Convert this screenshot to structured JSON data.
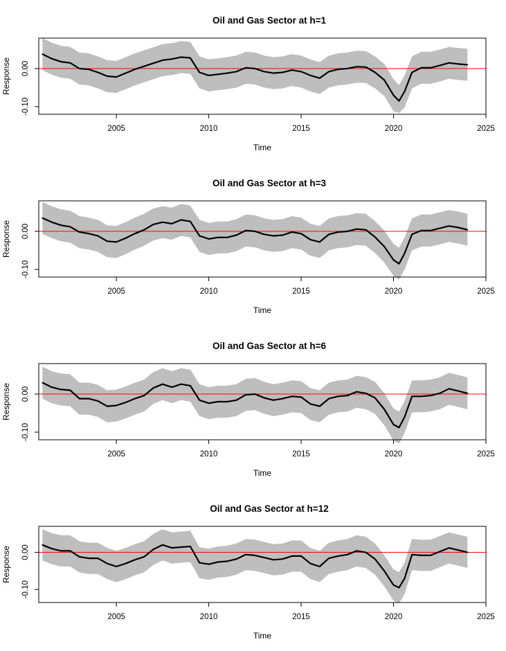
{
  "chart_data": [
    {
      "type": "line",
      "title": "Oil and Gas Sector  at h=1",
      "xlabel": "Time",
      "ylabel": "Response",
      "xlim": [
        2000.8,
        2025
      ],
      "ylim": [
        -0.12,
        0.08
      ],
      "x_ticks": [
        "2005",
        "2010",
        "2015",
        "2020",
        "2025"
      ],
      "y_ticks": [
        "-0.10",
        "0.00"
      ],
      "reference_line": {
        "y": 0,
        "color": "#ff0000"
      },
      "band_color": "#bebebe",
      "line_color": "#000000",
      "x": [
        2001.0,
        2001.5,
        2002.0,
        2002.5,
        2003.0,
        2003.5,
        2004.0,
        2004.5,
        2005.0,
        2005.5,
        2006.0,
        2006.5,
        2007.0,
        2007.5,
        2008.0,
        2008.5,
        2009.0,
        2009.5,
        2010.0,
        2010.5,
        2011.0,
        2011.5,
        2012.0,
        2012.5,
        2013.0,
        2013.5,
        2014.0,
        2014.5,
        2015.0,
        2015.5,
        2016.0,
        2016.5,
        2017.0,
        2017.5,
        2018.0,
        2018.5,
        2019.0,
        2019.5,
        2020.0,
        2020.3,
        2020.6,
        2021.0,
        2021.5,
        2022.0,
        2022.5,
        2023.0,
        2023.5,
        2024.0
      ],
      "series": [
        {
          "values": [
            0.038,
            0.026,
            0.018,
            0.015,
            0.0,
            -0.002,
            -0.01,
            -0.02,
            -0.022,
            -0.012,
            -0.002,
            0.006,
            0.014,
            0.022,
            0.025,
            0.03,
            0.028,
            -0.01,
            -0.018,
            -0.015,
            -0.012,
            -0.008,
            0.002,
            0.0,
            -0.008,
            -0.012,
            -0.01,
            -0.004,
            -0.008,
            -0.018,
            -0.025,
            -0.008,
            -0.002,
            0.0,
            0.005,
            0.004,
            -0.01,
            -0.03,
            -0.07,
            -0.085,
            -0.06,
            -0.01,
            0.002,
            0.002,
            0.008,
            0.015,
            0.012,
            0.01
          ],
          "lower": [
            -0.004,
            -0.016,
            -0.024,
            -0.027,
            -0.042,
            -0.044,
            -0.052,
            -0.062,
            -0.064,
            -0.054,
            -0.044,
            -0.036,
            -0.028,
            -0.02,
            -0.017,
            -0.012,
            -0.014,
            -0.052,
            -0.06,
            -0.057,
            -0.054,
            -0.05,
            -0.04,
            -0.042,
            -0.05,
            -0.054,
            -0.052,
            -0.046,
            -0.05,
            -0.06,
            -0.067,
            -0.05,
            -0.044,
            -0.042,
            -0.037,
            -0.038,
            -0.052,
            -0.072,
            -0.112,
            -0.117,
            -0.102,
            -0.052,
            -0.04,
            -0.04,
            -0.034,
            -0.027,
            -0.03,
            -0.032
          ],
          "upper": [
            0.08,
            0.068,
            0.06,
            0.057,
            0.042,
            0.04,
            0.032,
            0.022,
            0.02,
            0.03,
            0.04,
            0.048,
            0.056,
            0.064,
            0.067,
            0.072,
            0.07,
            0.032,
            0.024,
            0.027,
            0.03,
            0.034,
            0.044,
            0.042,
            0.034,
            0.03,
            0.032,
            0.038,
            0.034,
            0.024,
            0.017,
            0.034,
            0.04,
            0.042,
            0.047,
            0.046,
            0.032,
            0.012,
            -0.028,
            -0.043,
            -0.018,
            0.032,
            0.044,
            0.044,
            0.05,
            0.057,
            0.054,
            0.052
          ]
        }
      ]
    },
    {
      "type": "line",
      "title": "Oil and Gas Sector  at h=3",
      "xlabel": "Time",
      "ylabel": "Response",
      "xlim": [
        2000.8,
        2025
      ],
      "ylim": [
        -0.12,
        0.08
      ],
      "x_ticks": [
        "2005",
        "2010",
        "2015",
        "2020",
        "2025"
      ],
      "y_ticks": [
        "-0.10",
        "0.00"
      ],
      "reference_line": {
        "y": 0,
        "color": "#ff0000"
      },
      "band_color": "#bebebe",
      "line_color": "#000000",
      "x": [
        2001.0,
        2001.5,
        2002.0,
        2002.5,
        2003.0,
        2003.5,
        2004.0,
        2004.5,
        2005.0,
        2005.5,
        2006.0,
        2006.5,
        2007.0,
        2007.5,
        2008.0,
        2008.5,
        2009.0,
        2009.5,
        2010.0,
        2010.5,
        2011.0,
        2011.5,
        2012.0,
        2012.5,
        2013.0,
        2013.5,
        2014.0,
        2014.5,
        2015.0,
        2015.5,
        2016.0,
        2016.5,
        2017.0,
        2017.5,
        2018.0,
        2018.5,
        2019.0,
        2019.5,
        2020.0,
        2020.3,
        2020.6,
        2021.0,
        2021.5,
        2022.0,
        2022.5,
        2023.0,
        2023.5,
        2024.0
      ],
      "series": [
        {
          "values": [
            0.035,
            0.024,
            0.016,
            0.012,
            -0.002,
            -0.006,
            -0.012,
            -0.026,
            -0.028,
            -0.018,
            -0.006,
            0.004,
            0.018,
            0.024,
            0.02,
            0.03,
            0.026,
            -0.012,
            -0.02,
            -0.016,
            -0.016,
            -0.01,
            0.002,
            0.0,
            -0.008,
            -0.012,
            -0.01,
            -0.002,
            -0.006,
            -0.022,
            -0.028,
            -0.008,
            -0.002,
            0.0,
            0.006,
            0.004,
            -0.015,
            -0.04,
            -0.075,
            -0.085,
            -0.058,
            -0.008,
            0.002,
            0.002,
            0.008,
            0.014,
            0.01,
            0.004
          ],
          "lower": [
            -0.007,
            -0.018,
            -0.026,
            -0.03,
            -0.044,
            -0.048,
            -0.054,
            -0.068,
            -0.07,
            -0.06,
            -0.048,
            -0.038,
            -0.024,
            -0.018,
            -0.022,
            -0.012,
            -0.016,
            -0.054,
            -0.062,
            -0.058,
            -0.058,
            -0.052,
            -0.04,
            -0.042,
            -0.05,
            -0.054,
            -0.052,
            -0.044,
            -0.048,
            -0.064,
            -0.07,
            -0.05,
            -0.044,
            -0.042,
            -0.036,
            -0.038,
            -0.057,
            -0.082,
            -0.117,
            -0.127,
            -0.1,
            -0.05,
            -0.04,
            -0.04,
            -0.034,
            -0.028,
            -0.032,
            -0.038
          ],
          "upper": [
            0.077,
            0.066,
            0.058,
            0.054,
            0.04,
            0.036,
            0.03,
            0.016,
            0.014,
            0.024,
            0.036,
            0.046,
            0.06,
            0.066,
            0.062,
            0.072,
            0.068,
            0.03,
            0.022,
            0.026,
            0.026,
            0.032,
            0.044,
            0.042,
            0.034,
            0.03,
            0.032,
            0.04,
            0.036,
            0.02,
            0.014,
            0.034,
            0.04,
            0.042,
            0.048,
            0.046,
            0.027,
            0.002,
            -0.033,
            -0.043,
            -0.016,
            0.034,
            0.044,
            0.044,
            0.05,
            0.056,
            0.052,
            0.046
          ]
        }
      ]
    },
    {
      "type": "line",
      "title": "Oil and Gas Sector  at h=6",
      "xlabel": "Time",
      "ylabel": "Response",
      "xlim": [
        2000.8,
        2025
      ],
      "ylim": [
        -0.12,
        0.08
      ],
      "x_ticks": [
        "2005",
        "2010",
        "2015",
        "2020",
        "2025"
      ],
      "y_ticks": [
        "-0.10",
        "0.00"
      ],
      "reference_line": {
        "y": 0,
        "color": "#ff0000"
      },
      "band_color": "#bebebe",
      "line_color": "#000000",
      "x": [
        2001.0,
        2001.5,
        2002.0,
        2002.5,
        2003.0,
        2003.5,
        2004.0,
        2004.5,
        2005.0,
        2005.5,
        2006.0,
        2006.5,
        2007.0,
        2007.5,
        2008.0,
        2008.5,
        2009.0,
        2009.5,
        2010.0,
        2010.5,
        2011.0,
        2011.5,
        2012.0,
        2012.5,
        2013.0,
        2013.5,
        2014.0,
        2014.5,
        2015.0,
        2015.5,
        2016.0,
        2016.5,
        2017.0,
        2017.5,
        2018.0,
        2018.5,
        2019.0,
        2019.5,
        2020.0,
        2020.3,
        2020.6,
        2021.0,
        2021.5,
        2022.0,
        2022.5,
        2023.0,
        2023.5,
        2024.0
      ],
      "series": [
        {
          "values": [
            0.03,
            0.018,
            0.012,
            0.01,
            -0.012,
            -0.012,
            -0.018,
            -0.032,
            -0.03,
            -0.022,
            -0.012,
            -0.004,
            0.016,
            0.026,
            0.018,
            0.026,
            0.022,
            -0.016,
            -0.024,
            -0.02,
            -0.02,
            -0.016,
            -0.002,
            0.0,
            -0.01,
            -0.016,
            -0.012,
            -0.006,
            -0.008,
            -0.026,
            -0.032,
            -0.012,
            -0.006,
            -0.004,
            0.006,
            0.002,
            -0.01,
            -0.04,
            -0.08,
            -0.088,
            -0.06,
            -0.006,
            -0.006,
            -0.004,
            0.002,
            0.014,
            0.008,
            0.002
          ],
          "lower": [
            -0.012,
            -0.024,
            -0.03,
            -0.032,
            -0.054,
            -0.054,
            -0.06,
            -0.074,
            -0.072,
            -0.064,
            -0.054,
            -0.046,
            -0.026,
            -0.016,
            -0.024,
            -0.016,
            -0.02,
            -0.058,
            -0.066,
            -0.062,
            -0.062,
            -0.058,
            -0.044,
            -0.042,
            -0.052,
            -0.058,
            -0.054,
            -0.048,
            -0.05,
            -0.068,
            -0.074,
            -0.054,
            -0.048,
            -0.046,
            -0.036,
            -0.04,
            -0.052,
            -0.082,
            -0.122,
            -0.13,
            -0.102,
            -0.048,
            -0.048,
            -0.046,
            -0.04,
            -0.028,
            -0.034,
            -0.04
          ],
          "upper": [
            0.072,
            0.06,
            0.054,
            0.052,
            0.03,
            0.03,
            0.024,
            0.01,
            0.012,
            0.02,
            0.03,
            0.038,
            0.058,
            0.068,
            0.06,
            0.068,
            0.064,
            0.026,
            0.018,
            0.022,
            0.022,
            0.026,
            0.04,
            0.042,
            0.032,
            0.026,
            0.03,
            0.036,
            0.034,
            0.016,
            0.01,
            0.03,
            0.036,
            0.038,
            0.048,
            0.044,
            0.032,
            0.002,
            -0.038,
            -0.046,
            -0.018,
            0.036,
            0.036,
            0.038,
            0.044,
            0.056,
            0.05,
            0.044
          ]
        }
      ]
    },
    {
      "type": "line",
      "title": "Oil and Gas Sector  at h=12",
      "xlabel": "Time",
      "ylabel": "Response",
      "xlim": [
        2000.8,
        2025
      ],
      "ylim": [
        -0.135,
        0.07
      ],
      "x_ticks": [
        "2005",
        "2010",
        "2015",
        "2020",
        "2025"
      ],
      "y_ticks": [
        "-0.10",
        "0.00"
      ],
      "reference_line": {
        "y": 0,
        "color": "#ff0000"
      },
      "band_color": "#bebebe",
      "line_color": "#000000",
      "x": [
        2001.0,
        2001.5,
        2002.0,
        2002.5,
        2003.0,
        2003.5,
        2004.0,
        2004.5,
        2005.0,
        2005.5,
        2006.0,
        2006.5,
        2007.0,
        2007.5,
        2008.0,
        2008.5,
        2009.0,
        2009.5,
        2010.0,
        2010.5,
        2011.0,
        2011.5,
        2012.0,
        2012.5,
        2013.0,
        2013.5,
        2014.0,
        2014.5,
        2015.0,
        2015.5,
        2016.0,
        2016.5,
        2017.0,
        2017.5,
        2018.0,
        2018.5,
        2019.0,
        2019.5,
        2020.0,
        2020.3,
        2020.6,
        2021.0,
        2021.5,
        2022.0,
        2022.5,
        2023.0,
        2023.5,
        2024.0
      ],
      "series": [
        {
          "values": [
            0.02,
            0.01,
            0.004,
            0.004,
            -0.012,
            -0.016,
            -0.016,
            -0.03,
            -0.038,
            -0.03,
            -0.02,
            -0.012,
            0.008,
            0.02,
            0.012,
            0.014,
            0.016,
            -0.028,
            -0.032,
            -0.026,
            -0.024,
            -0.018,
            -0.006,
            -0.008,
            -0.014,
            -0.02,
            -0.018,
            -0.01,
            -0.01,
            -0.03,
            -0.038,
            -0.016,
            -0.01,
            -0.006,
            0.004,
            0.0,
            -0.018,
            -0.05,
            -0.088,
            -0.095,
            -0.07,
            -0.006,
            -0.008,
            -0.008,
            0.002,
            0.012,
            0.006,
            0.0
          ],
          "lower": [
            -0.022,
            -0.032,
            -0.038,
            -0.038,
            -0.054,
            -0.058,
            -0.058,
            -0.072,
            -0.08,
            -0.072,
            -0.062,
            -0.054,
            -0.034,
            -0.022,
            -0.03,
            -0.028,
            -0.026,
            -0.07,
            -0.074,
            -0.068,
            -0.066,
            -0.06,
            -0.048,
            -0.05,
            -0.056,
            -0.062,
            -0.06,
            -0.052,
            -0.052,
            -0.072,
            -0.08,
            -0.058,
            -0.052,
            -0.048,
            -0.038,
            -0.042,
            -0.06,
            -0.092,
            -0.13,
            -0.137,
            -0.112,
            -0.048,
            -0.05,
            -0.05,
            -0.04,
            -0.03,
            -0.036,
            -0.042
          ],
          "upper": [
            0.062,
            0.052,
            0.046,
            0.046,
            0.03,
            0.026,
            0.026,
            0.012,
            0.004,
            0.012,
            0.022,
            0.03,
            0.05,
            0.062,
            0.054,
            0.056,
            0.058,
            0.014,
            0.01,
            0.016,
            0.018,
            0.024,
            0.036,
            0.034,
            0.028,
            0.022,
            0.024,
            0.032,
            0.032,
            0.012,
            0.004,
            0.026,
            0.032,
            0.036,
            0.046,
            0.042,
            0.024,
            -0.008,
            -0.046,
            -0.053,
            -0.028,
            0.036,
            0.034,
            0.034,
            0.044,
            0.054,
            0.048,
            0.042
          ]
        }
      ]
    }
  ]
}
